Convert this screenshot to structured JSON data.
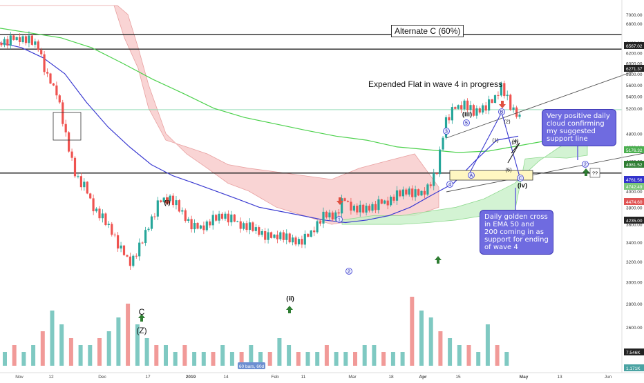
{
  "chart_data": {
    "type": "candlestick",
    "title": "Alternate C (60%)",
    "subtitle": "Expended Flat in wave 4 in progress",
    "y_axis": {
      "ylim": [
        2300,
        7200
      ],
      "scale": "log",
      "ticks": [
        "7000.00",
        "6800.00",
        "6400.00",
        "6200.00",
        "6000.00",
        "5800.00",
        "5600.00",
        "5400.00",
        "5200.00",
        "4800.00",
        "4600.00",
        "4400.00",
        "4000.00",
        "3800.00",
        "3600.00",
        "3400.00",
        "3200.00",
        "3000.00",
        "2800.00",
        "2600.00",
        "2400.00"
      ],
      "markers": [
        {
          "label": "6567.02",
          "color": "#222222"
        },
        {
          "label": "6271.37",
          "color": "#222222"
        },
        {
          "label": "5176.32",
          "color": "#4caf50"
        },
        {
          "label": "4981.52",
          "color": "#2e7d32"
        },
        {
          "label": "4761.56",
          "color": "#3333cc"
        },
        {
          "label": "4742.49",
          "color": "#7cc87c"
        },
        {
          "label": "4474.60",
          "color": "#e05555"
        },
        {
          "label": "4235.00",
          "color": "#222222"
        },
        {
          "label": "7.546K",
          "color": "#222222"
        },
        {
          "label": "1.171K",
          "color": "#4aa3a3"
        }
      ]
    },
    "x_axis": {
      "ticks": [
        "Nov",
        "12",
        "Dec",
        "17",
        "2019",
        "14",
        "Feb",
        "11",
        "Mar",
        "18",
        "Apr",
        "15",
        "May",
        "13",
        "Jun"
      ]
    },
    "series": [
      {
        "name": "Price (4h candles)",
        "close_path": [
          6400,
          6450,
          6520,
          6430,
          6300,
          5700,
          5500,
          4700,
          4200,
          4050,
          3800,
          3650,
          3500,
          3300,
          3200,
          3350,
          3600,
          3850,
          3950,
          3800,
          3650,
          3550,
          3600,
          3650,
          3700,
          3650,
          3600,
          3550,
          3500,
          3450,
          3500,
          3420,
          3400,
          3450,
          3600,
          3700,
          3680,
          3900,
          3800,
          3750,
          3800,
          3850,
          3900,
          3950,
          4000,
          3950,
          4050,
          4200,
          5000,
          5200,
          5300,
          5100,
          5200,
          5300,
          5600,
          5200,
          5050
        ]
      },
      {
        "name": "EMA 50",
        "values": [
          6400,
          6300,
          6100,
          5800,
          5300,
          4900,
          4600,
          4350,
          4200,
          4100,
          4000,
          3900,
          3800,
          3750,
          3700,
          3650,
          3620,
          3650,
          3700,
          3800,
          3950,
          4100,
          4400,
          4700,
          4760
        ]
      },
      {
        "name": "EMA 200",
        "values": [
          6700,
          6600,
          6500,
          6300,
          6000,
          5700,
          5450,
          5200,
          5050,
          4950,
          4850,
          4760,
          4700,
          4600,
          4560,
          4520,
          4540,
          4620,
          4700,
          4750
        ]
      },
      {
        "name": "Volume",
        "values": [
          2,
          3,
          2,
          3,
          5,
          8,
          6,
          4,
          3,
          3,
          4,
          5,
          7,
          9,
          6,
          4,
          3,
          3,
          2,
          3,
          2,
          2,
          2,
          3,
          2,
          2,
          3,
          2,
          2,
          4,
          3,
          2,
          2,
          2,
          3,
          2,
          2,
          2,
          3,
          3,
          2,
          2,
          2,
          10,
          8,
          7,
          5,
          4,
          3,
          3,
          2,
          6,
          3,
          2
        ]
      }
    ],
    "wave_labels": [
      "(iii)",
      "(iv)",
      "(i)",
      "(ii)",
      "C",
      "(Z)",
      "1",
      "2",
      "3",
      "4",
      "5",
      "A",
      "B",
      "C",
      "(1)",
      "(2)",
      "(3)",
      "(4)",
      "(5)",
      "2",
      "??"
    ],
    "annotations": [
      "Very positive daily cloud confirming my suggested support line",
      "Daily golden cross in EMA 50 and 200 coming in as support for ending of wave 4",
      "60 bars, 60d"
    ]
  },
  "colors": {
    "up": "#26a69a",
    "down": "#ef5350",
    "ema50": "#3b3bd1",
    "ema200": "#4cd14c",
    "cloud_bear": "#f7c5c5",
    "cloud_bull": "#c8f0c8",
    "annotation_bg": "#6f6be0",
    "arrow_up": "#2e7d32",
    "arrow_down": "#e05040"
  }
}
